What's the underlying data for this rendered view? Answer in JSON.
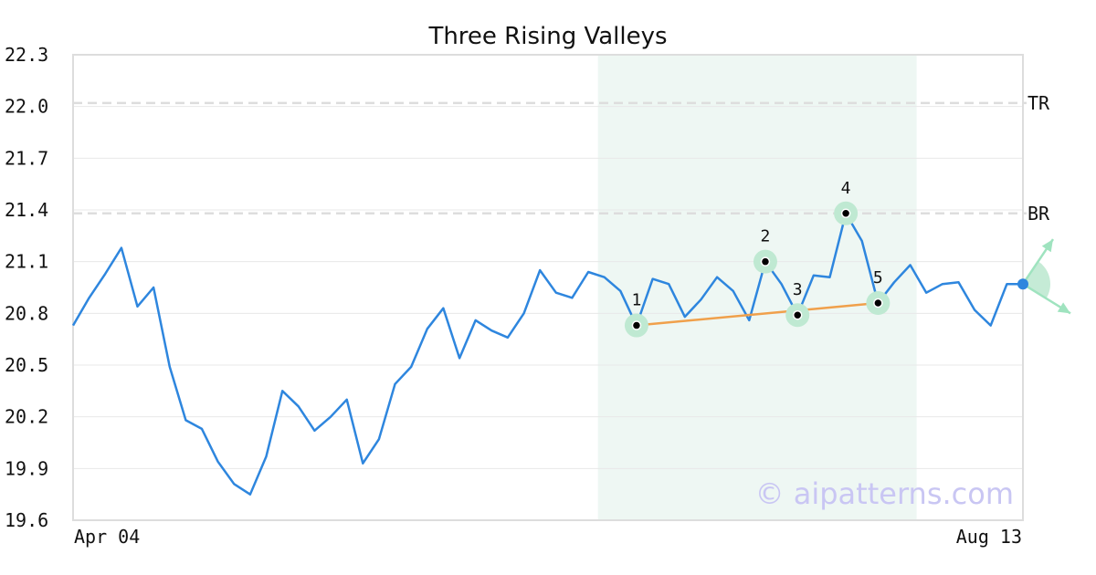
{
  "colors": {
    "price_line": "#2e86de",
    "pattern_line": "#f0a04b",
    "marker_ring": "#bfe9d2",
    "marker_dot": "#000000",
    "highlight": "#eef7f3",
    "level_line": "#dddddd",
    "grid": "#e8e8e8",
    "frame": "#dddddd",
    "arrow": "#9fe3bf",
    "last_point": "#2e86de",
    "watermark": "#c9c6f3"
  },
  "watermark": "© aipatterns.com",
  "chart_data": {
    "type": "line",
    "title": "Three Rising Valleys",
    "xlabel": "",
    "ylabel": "",
    "ylim": [
      19.6,
      22.3
    ],
    "yticks": [
      "22.3",
      "22.0",
      "21.7",
      "21.4",
      "21.1",
      "20.8",
      "20.5",
      "20.2",
      "19.9",
      "19.6"
    ],
    "x_range": [
      "Apr 04",
      "Aug 13"
    ],
    "xtick_labels": [
      "Apr 04",
      "Aug 13"
    ],
    "grid": true,
    "series": [
      {
        "values": [
          20.73,
          20.89,
          21.03,
          21.18,
          20.84,
          20.95,
          20.49,
          20.18,
          20.13,
          19.94,
          19.81,
          19.75,
          19.97,
          20.35,
          20.26,
          20.12,
          20.2,
          20.3,
          19.93,
          20.07,
          20.39,
          20.49,
          20.71,
          20.83,
          20.54,
          20.76,
          20.7,
          20.66,
          20.8,
          21.05,
          20.92,
          20.89,
          21.04,
          21.01,
          20.93,
          20.73,
          21.0,
          20.97,
          20.78,
          20.88,
          21.01,
          20.93,
          20.76,
          21.1,
          20.97,
          20.79,
          21.02,
          21.01,
          21.38,
          21.22,
          20.86,
          20.98,
          21.08,
          20.92,
          20.97,
          20.98,
          20.82,
          20.73,
          20.97,
          20.97
        ]
      }
    ],
    "levels": [
      {
        "name": "TR",
        "value": 22.02
      },
      {
        "name": "BR",
        "value": 21.38
      }
    ],
    "highlight_range": {
      "start_index": 33,
      "end_index": 52
    },
    "pattern_points": [
      {
        "label": "1",
        "index": 35,
        "value": 20.73
      },
      {
        "label": "2",
        "index": 43,
        "value": 21.1
      },
      {
        "label": "3",
        "index": 45,
        "value": 20.79
      },
      {
        "label": "4",
        "index": 48,
        "value": 21.38
      },
      {
        "label": "5",
        "index": 50,
        "value": 20.86
      }
    ],
    "trendline": {
      "from": "1",
      "to": "5"
    },
    "projection": {
      "index": 59,
      "value": 20.97,
      "up_target": 21.23,
      "down_target": 20.8
    }
  }
}
